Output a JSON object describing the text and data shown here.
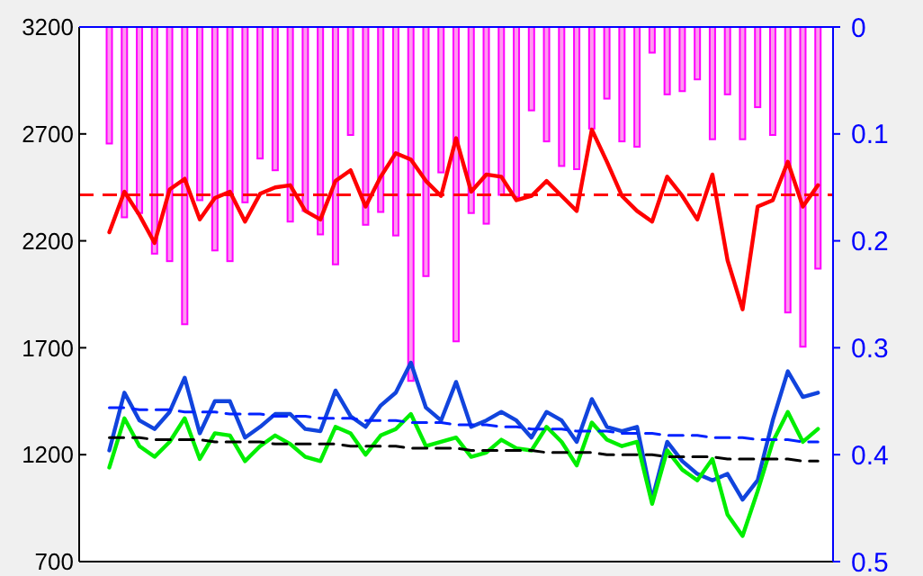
{
  "chart_data": {
    "type": "line",
    "categories": [
      null,
      null,
      null,
      null,
      null,
      null,
      null,
      null,
      null,
      null,
      null,
      null,
      null,
      null,
      null,
      null,
      null,
      null,
      null,
      null,
      null,
      null,
      null,
      null,
      null,
      null,
      null,
      null,
      null,
      null,
      null,
      null,
      null,
      null,
      null,
      null,
      null,
      null,
      null,
      null,
      null,
      null,
      null,
      null,
      null,
      null,
      null,
      null
    ],
    "ylim": [
      700,
      3200
    ],
    "yticks": [
      700,
      1200,
      1700,
      2200,
      2700,
      3200
    ],
    "y2lim": [
      0.5,
      0
    ],
    "y2ticks": [
      0,
      0.1,
      0.2,
      0.3,
      0.4,
      0.5
    ],
    "series": [
      {
        "type": "bar",
        "axis": "y2",
        "color": "#ff00ff",
        "values": [
          0.109,
          0.178,
          0.174,
          0.212,
          0.219,
          0.278,
          0.162,
          0.209,
          0.219,
          0.164,
          0.123,
          0.134,
          0.182,
          0.172,
          0.194,
          0.222,
          0.101,
          0.185,
          0.173,
          0.195,
          0.331,
          0.233,
          0.136,
          0.294,
          0.174,
          0.184,
          0.157,
          0.159,
          0.078,
          0.107,
          0.13,
          0.133,
          0.095,
          0.067,
          0.107,
          0.112,
          0.024,
          0.063,
          0.06,
          0.049,
          0.105,
          0.063,
          0.105,
          0.075,
          0.101,
          0.267,
          0.299,
          0.226
        ]
      },
      {
        "color": "#ff0000",
        "values": [
          2240,
          2430,
          2320,
          2190,
          2440,
          2490,
          2300,
          2400,
          2430,
          2290,
          2420,
          2450,
          2460,
          2340,
          2300,
          2480,
          2530,
          2360,
          2500,
          2610,
          2580,
          2480,
          2410,
          2680,
          2430,
          2510,
          2500,
          2390,
          2410,
          2480,
          2410,
          2340,
          2720,
          2570,
          2410,
          2340,
          2290,
          2500,
          2410,
          2300,
          2510,
          2110,
          1880,
          2360,
          2390,
          2570,
          2360,
          2460
        ]
      },
      {
        "color": "#1144dd",
        "values": [
          1220,
          1490,
          1360,
          1320,
          1400,
          1560,
          1300,
          1450,
          1450,
          1280,
          1330,
          1390,
          1390,
          1320,
          1310,
          1500,
          1380,
          1330,
          1430,
          1490,
          1630,
          1420,
          1360,
          1540,
          1330,
          1360,
          1400,
          1360,
          1280,
          1400,
          1360,
          1260,
          1460,
          1330,
          1310,
          1330,
          990,
          1260,
          1170,
          1110,
          1080,
          1110,
          990,
          1080,
          1360,
          1590,
          1470,
          1490
        ]
      },
      {
        "color": "#00ee00",
        "values": [
          1140,
          1370,
          1240,
          1190,
          1260,
          1370,
          1180,
          1300,
          1290,
          1170,
          1240,
          1290,
          1250,
          1190,
          1170,
          1330,
          1300,
          1200,
          1290,
          1320,
          1390,
          1240,
          1260,
          1280,
          1190,
          1210,
          1270,
          1230,
          1220,
          1330,
          1260,
          1150,
          1350,
          1270,
          1240,
          1260,
          970,
          1220,
          1130,
          1080,
          1180,
          920,
          820,
          1030,
          1260,
          1400,
          1260,
          1320
        ]
      },
      {
        "color": "#0022ff",
        "line_style": "dashed",
        "values": [
          1420,
          1420,
          1410,
          1410,
          1410,
          1400,
          1400,
          1400,
          1390,
          1390,
          1390,
          1380,
          1380,
          1380,
          1370,
          1370,
          1370,
          1360,
          1360,
          1360,
          1350,
          1350,
          1350,
          1340,
          1340,
          1340,
          1330,
          1330,
          1320,
          1320,
          1320,
          1310,
          1310,
          1310,
          1300,
          1300,
          1300,
          1290,
          1290,
          1290,
          1280,
          1280,
          1280,
          1270,
          1270,
          1270,
          1260,
          1260
        ]
      },
      {
        "color": "#000000",
        "line_style": "dashed",
        "values": [
          1280,
          1280,
          1280,
          1270,
          1270,
          1270,
          1270,
          1260,
          1260,
          1260,
          1260,
          1250,
          1250,
          1250,
          1250,
          1250,
          1240,
          1240,
          1240,
          1240,
          1230,
          1230,
          1230,
          1230,
          1220,
          1220,
          1220,
          1220,
          1220,
          1210,
          1210,
          1210,
          1210,
          1200,
          1200,
          1200,
          1200,
          1190,
          1190,
          1190,
          1190,
          1180,
          1180,
          1180,
          1180,
          1180,
          1170,
          1170
        ]
      }
    ],
    "ref_lines": [
      {
        "axis": "y",
        "value": 2415,
        "color": "#ff0000",
        "line_style": "dashed"
      }
    ]
  }
}
